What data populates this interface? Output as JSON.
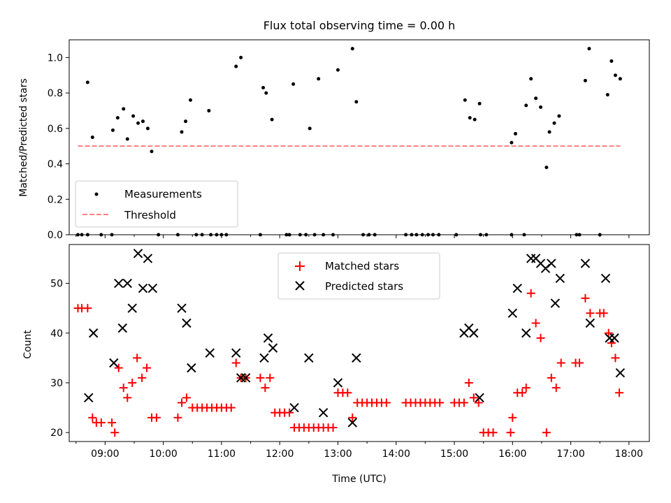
{
  "title": "Flux total observing time = 0.00 h",
  "colors": {
    "measurement": "#000000",
    "threshold": "#ff7f7f",
    "matched": "#ff0000",
    "predicted": "#000000"
  },
  "chart_data": [
    {
      "type": "scatter",
      "title": "Flux total observing time = 0.00 h",
      "xlabel": "",
      "ylabel": "Matched/Predicted stars",
      "ylim": [
        0,
        1.1
      ],
      "yticks": [
        "0.0",
        "0.2",
        "0.4",
        "0.6",
        "0.8",
        "1.0"
      ],
      "xlim": [
        "08:23",
        "18:21"
      ],
      "legend": {
        "placement": "lower-left",
        "entries": [
          "Measurements",
          "Threshold"
        ]
      },
      "series": [
        {
          "name": "Measurements",
          "marker": "dot",
          "x": [
            "08:42",
            "08:47",
            "09:08",
            "09:13",
            "09:19",
            "09:23",
            "09:29",
            "09:34",
            "09:39",
            "09:44",
            "09:48",
            "10:19",
            "10:23",
            "10:28",
            "10:47",
            "11:15",
            "11:20",
            "11:43",
            "11:46",
            "11:52",
            "12:14",
            "12:31",
            "12:40",
            "13:00",
            "13:15",
            "13:19",
            "15:11",
            "15:16",
            "15:21",
            "15:26",
            "15:59",
            "16:03",
            "16:14",
            "16:19",
            "16:24",
            "16:29",
            "16:35",
            "16:38",
            "16:43",
            "16:48",
            "17:15",
            "17:19",
            "17:38",
            "17:42",
            "17:46",
            "17:51",
            "08:32",
            "08:36",
            "08:42",
            "08:56",
            "09:07",
            "09:55",
            "10:15",
            "10:34",
            "10:40",
            "10:49",
            "10:55",
            "11:00",
            "11:05",
            "11:40",
            "12:07",
            "12:10",
            "12:21",
            "12:27",
            "12:36",
            "12:45",
            "12:55",
            "13:26",
            "13:32",
            "13:38",
            "14:10",
            "14:16",
            "14:21",
            "14:27",
            "14:33",
            "14:38",
            "14:44",
            "15:02",
            "15:27",
            "15:33",
            "15:59",
            "16:12",
            "17:06",
            "17:09",
            "17:30"
          ],
          "y": [
            0.86,
            0.55,
            0.59,
            0.66,
            0.71,
            0.54,
            0.67,
            0.63,
            0.64,
            0.6,
            0.47,
            0.58,
            0.64,
            0.76,
            0.7,
            0.95,
            1.0,
            0.83,
            0.8,
            0.65,
            0.85,
            0.6,
            0.88,
            0.93,
            1.05,
            0.75,
            0.76,
            0.66,
            0.65,
            0.74,
            0.52,
            0.57,
            0.73,
            0.88,
            0.77,
            0.72,
            0.38,
            0.58,
            0.63,
            0.67,
            0.87,
            1.05,
            0.79,
            0.98,
            0.9,
            0.88,
            0,
            0,
            0,
            0,
            0,
            0,
            0,
            0,
            0,
            0,
            0,
            0,
            0,
            0,
            0,
            0,
            0,
            0,
            0,
            0,
            0,
            0,
            0,
            0,
            0,
            0,
            0,
            0,
            0,
            0,
            0,
            0,
            0,
            0,
            0,
            0,
            0,
            0,
            0
          ]
        },
        {
          "name": "Threshold",
          "style": "dashed-line",
          "x": [
            "08:32",
            "17:51"
          ],
          "y": [
            0.5,
            0.5
          ]
        }
      ]
    },
    {
      "type": "scatter",
      "title": "",
      "xlabel": "Time (UTC)",
      "ylabel": "Count",
      "ylim": [
        18.2,
        57.8
      ],
      "yticks": [
        "20",
        "30",
        "40",
        "50"
      ],
      "xlim": [
        "08:23",
        "18:21"
      ],
      "xticks": [
        "09:00",
        "10:00",
        "11:00",
        "12:00",
        "13:00",
        "14:00",
        "15:00",
        "16:00",
        "17:00",
        "18:00"
      ],
      "legend": {
        "placement": "top-center",
        "entries": [
          "Matched stars",
          "Predicted stars"
        ]
      },
      "series": [
        {
          "name": "Matched stars",
          "marker": "plus",
          "x": [
            "08:32",
            "08:36",
            "08:42",
            "08:47",
            "08:51",
            "08:56",
            "09:07",
            "09:10",
            "09:14",
            "09:19",
            "09:23",
            "09:28",
            "09:33",
            "09:38",
            "09:43",
            "09:48",
            "09:53",
            "10:15",
            "10:19",
            "10:24",
            "10:30",
            "10:35",
            "10:40",
            "10:45",
            "10:50",
            "10:55",
            "11:00",
            "11:05",
            "11:10",
            "11:15",
            "11:20",
            "11:25",
            "11:40",
            "11:45",
            "11:50",
            "11:55",
            "12:00",
            "12:05",
            "12:10",
            "12:15",
            "12:20",
            "12:25",
            "12:30",
            "12:35",
            "12:40",
            "12:45",
            "12:50",
            "12:55",
            "13:00",
            "13:05",
            "13:10",
            "13:15",
            "13:20",
            "13:25",
            "13:30",
            "13:35",
            "13:40",
            "13:45",
            "13:50",
            "14:10",
            "14:15",
            "14:20",
            "14:25",
            "14:30",
            "14:35",
            "14:40",
            "14:45",
            "15:00",
            "15:05",
            "15:10",
            "15:15",
            "15:20",
            "15:25",
            "15:30",
            "15:35",
            "15:40",
            "15:58",
            "16:00",
            "16:05",
            "16:10",
            "16:14",
            "16:19",
            "16:24",
            "16:29",
            "16:35",
            "16:40",
            "16:45",
            "16:50",
            "17:05",
            "17:09",
            "17:15",
            "17:20",
            "17:30",
            "17:34",
            "17:39",
            "17:42",
            "17:46",
            "17:50"
          ],
          "y": [
            45,
            45,
            45,
            23,
            22,
            22,
            22,
            20,
            33,
            29,
            27,
            30,
            35,
            31,
            33,
            23,
            23,
            23,
            26,
            27,
            25,
            25,
            25,
            25,
            25,
            25,
            25,
            25,
            25,
            34,
            31,
            31,
            31,
            29,
            31,
            24,
            24,
            24,
            24,
            21,
            21,
            21,
            21,
            21,
            21,
            21,
            21,
            21,
            28,
            28,
            28,
            23,
            26,
            26,
            26,
            26,
            26,
            26,
            26,
            26,
            26,
            26,
            26,
            26,
            26,
            26,
            26,
            26,
            26,
            26,
            30,
            27,
            26,
            20,
            20,
            20,
            20,
            23,
            28,
            28,
            29,
            48,
            42,
            39,
            20,
            31,
            29,
            34,
            34,
            34,
            47,
            44,
            44,
            44,
            40,
            38,
            35,
            28
          ]
        },
        {
          "name": "Predicted stars",
          "marker": "x",
          "x": [
            "08:43",
            "08:48",
            "09:09",
            "09:14",
            "09:18",
            "09:23",
            "09:28",
            "09:34",
            "09:39",
            "09:44",
            "09:49",
            "10:19",
            "10:24",
            "10:29",
            "10:48",
            "11:15",
            "11:20",
            "11:25",
            "11:44",
            "11:48",
            "11:53",
            "12:15",
            "12:30",
            "12:45",
            "13:00",
            "13:15",
            "13:19",
            "15:10",
            "15:15",
            "15:20",
            "15:26",
            "16:00",
            "16:05",
            "16:14",
            "16:19",
            "16:24",
            "16:29",
            "16:34",
            "16:40",
            "16:44",
            "16:49",
            "17:15",
            "17:20",
            "17:36",
            "17:40",
            "17:45",
            "17:51"
          ],
          "y": [
            27,
            40,
            34,
            50,
            41,
            50,
            45,
            56,
            49,
            55,
            49,
            45,
            42,
            33,
            36,
            36,
            31,
            31,
            35,
            39,
            37,
            25,
            35,
            24,
            30,
            22,
            35,
            40,
            41,
            40,
            27,
            44,
            49,
            40,
            55,
            55,
            54,
            53,
            54,
            46,
            51,
            54,
            42,
            51,
            39,
            39,
            32
          ]
        }
      ]
    }
  ]
}
